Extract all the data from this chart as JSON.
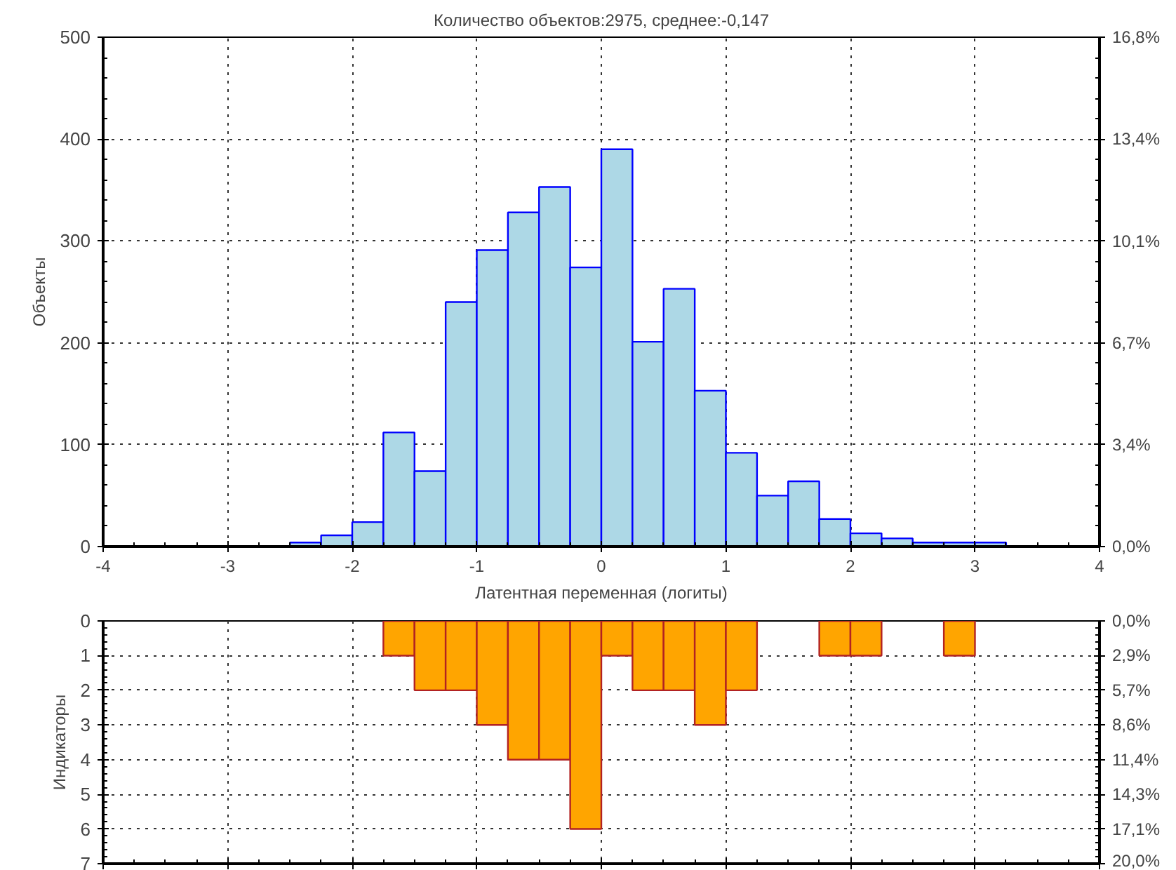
{
  "chart_data": [
    {
      "type": "histogram",
      "title": "Количество объектов:2975, среднее:-0,147",
      "xlabel": "Латентная переменная (логиты)",
      "ylabel": "Объекты",
      "bins": [
        -4,
        -3.75,
        -3.5,
        -3.25,
        -3,
        -2.75,
        -2.5,
        -2.25,
        -2,
        -1.75,
        -1.5,
        -1.25,
        -1,
        -0.75,
        -0.5,
        -0.25,
        0,
        0.25,
        0.5,
        0.75,
        1,
        1.25,
        1.5,
        1.75,
        2,
        2.25,
        2.5,
        2.75,
        3,
        3.25,
        3.5,
        3.75,
        4
      ],
      "values": [
        0,
        0,
        0,
        0,
        0,
        0,
        4,
        11,
        24,
        112,
        74,
        240,
        291,
        328,
        353,
        274,
        390,
        201,
        253,
        153,
        92,
        50,
        64,
        27,
        13,
        8,
        4,
        4,
        4,
        0,
        0,
        0
      ],
      "color": "#add8e6",
      "xlim": [
        -4,
        4
      ],
      "xticks": [
        -4,
        -3,
        -2,
        -1,
        0,
        1,
        2,
        3,
        4
      ],
      "ylim": [
        0,
        500
      ],
      "yticks": [
        0,
        100,
        200,
        300,
        400,
        500
      ],
      "y2lim": [
        0,
        16.81
      ],
      "y2ticks": [
        {
          "value": 0,
          "label": "0,0%"
        },
        {
          "value": 3.36,
          "label": "3,4%"
        },
        {
          "value": 6.72,
          "label": "6,7%"
        },
        {
          "value": 10.08,
          "label": "10,1%"
        },
        {
          "value": 13.45,
          "label": "13,4%"
        },
        {
          "value": 16.81,
          "label": "16,8%"
        }
      ],
      "grid": true
    },
    {
      "type": "histogram",
      "ylabel": "Индикаторы",
      "bins": [
        -1.75,
        -1.5,
        -1.25,
        -1,
        -0.75,
        -0.5,
        -0.25,
        0,
        0.25,
        0.5,
        0.75,
        1,
        1.25,
        1.5,
        1.75,
        2,
        2.25,
        2.5,
        2.75,
        3
      ],
      "values": [
        1,
        2,
        2,
        3,
        4,
        4,
        6,
        1,
        2,
        2,
        3,
        2,
        0,
        0,
        1,
        1,
        0,
        0,
        1
      ],
      "color": "#ffa500",
      "xlim": [
        -4,
        4
      ],
      "xticks": [
        {
          "value": -4,
          "label": null
        },
        {
          "value": -3,
          "label": null
        },
        {
          "value": -2,
          "label": null
        },
        {
          "value": -1,
          "label": null
        },
        {
          "value": 0,
          "label": null
        },
        {
          "value": 1,
          "label": null
        },
        {
          "value": 2,
          "label": null
        },
        {
          "value": 3,
          "label": null
        },
        {
          "value": 4,
          "label": null
        }
      ],
      "ylim": [
        7,
        0
      ],
      "yticks": [
        0,
        1,
        2,
        3,
        4,
        5,
        6,
        7
      ],
      "y2lim": [
        20,
        0
      ],
      "y2ticks": [
        {
          "value": 0,
          "label": "0,0%"
        },
        {
          "value": 2.857,
          "label": "2,9%"
        },
        {
          "value": 5.714,
          "label": "5,7%"
        },
        {
          "value": 8.571,
          "label": "8,6%"
        },
        {
          "value": 11.43,
          "label": "11,4%"
        },
        {
          "value": 14.29,
          "label": "14,3%"
        },
        {
          "value": 17.14,
          "label": "17,1%"
        },
        {
          "value": 20,
          "label": "20,0%"
        }
      ],
      "tick_labels": "y",
      "grid": true
    }
  ]
}
